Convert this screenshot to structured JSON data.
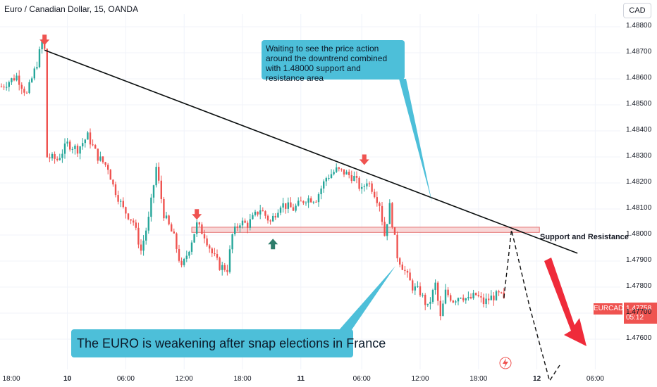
{
  "header": {
    "title": "Euro / Canadian Dollar, 15, OANDA"
  },
  "currency_button": {
    "label": "CAD"
  },
  "annotations": {
    "top": "Waiting to see the price action around the downtrend combined with 1.48000 support and resistance area",
    "bottom": "The EURO is weakening after snap elections in France",
    "support_resistance": "Support and Resistance"
  },
  "price_tag": {
    "symbol": "EURCAD",
    "price": "1.47758",
    "countdown": "05:12"
  },
  "colors": {
    "up": "#26a69a",
    "down": "#ef5350",
    "callout": "#4dbfd9",
    "trendline": "#0b0f0f",
    "zone_fill": "#f6c9c9",
    "zone_border": "#e57373",
    "projection_arrow": "#ef2b3a"
  },
  "chart_data": {
    "type": "candlestick",
    "symbol": "EURCAD",
    "interval": "15",
    "y_ticks": [
      "1.48800",
      "1.48700",
      "1.48600",
      "1.48500",
      "1.48400",
      "1.48300",
      "1.48200",
      "1.48100",
      "1.48000",
      "1.47900",
      "1.47800",
      "1.47700",
      "1.47600"
    ],
    "x_ticks": [
      {
        "label": "18:00",
        "day_boundary": false
      },
      {
        "label": "10",
        "day_boundary": true
      },
      {
        "label": "06:00",
        "day_boundary": false
      },
      {
        "label": "12:00",
        "day_boundary": false
      },
      {
        "label": "18:00",
        "day_boundary": false
      },
      {
        "label": "11",
        "day_boundary": true
      },
      {
        "label": "06:00",
        "day_boundary": false
      },
      {
        "label": "12:00",
        "day_boundary": false
      },
      {
        "label": "18:00",
        "day_boundary": false
      },
      {
        "label": "12",
        "day_boundary": true
      },
      {
        "label": "06:00",
        "day_boundary": false
      }
    ],
    "ylim": [
      1.4755,
      1.4885
    ],
    "price_path": [
      [
        0,
        1.4857
      ],
      [
        6,
        1.4861
      ],
      [
        10,
        1.4854
      ],
      [
        14,
        1.4866
      ],
      [
        16,
        1.4874
      ],
      [
        17,
        1.4871
      ],
      [
        18,
        1.483
      ],
      [
        22,
        1.4829
      ],
      [
        26,
        1.4835
      ],
      [
        30,
        1.4833
      ],
      [
        34,
        1.4838
      ],
      [
        38,
        1.483
      ],
      [
        42,
        1.4826
      ],
      [
        44,
        1.4819
      ],
      [
        48,
        1.481
      ],
      [
        52,
        1.4805
      ],
      [
        55,
        1.4794
      ],
      [
        58,
        1.4806
      ],
      [
        61,
        1.4826
      ],
      [
        64,
        1.4808
      ],
      [
        68,
        1.4799
      ],
      [
        71,
        1.4787
      ],
      [
        74,
        1.4795
      ],
      [
        77,
        1.4804
      ],
      [
        80,
        1.48
      ],
      [
        83,
        1.4793
      ],
      [
        86,
        1.4788
      ],
      [
        89,
        1.4787
      ],
      [
        91,
        1.48
      ],
      [
        94,
        1.4805
      ],
      [
        97,
        1.4804
      ],
      [
        102,
        1.481
      ],
      [
        106,
        1.4805
      ],
      [
        110,
        1.4812
      ],
      [
        115,
        1.481
      ],
      [
        120,
        1.4814
      ],
      [
        124,
        1.4814
      ],
      [
        128,
        1.4822
      ],
      [
        132,
        1.4825
      ],
      [
        135,
        1.4824
      ],
      [
        139,
        1.4822
      ],
      [
        142,
        1.4817
      ],
      [
        144,
        1.4821
      ],
      [
        146,
        1.4818
      ],
      [
        149,
        1.4812
      ],
      [
        151,
        1.48
      ],
      [
        153,
        1.4811
      ],
      [
        156,
        1.4792
      ],
      [
        159,
        1.4786
      ],
      [
        162,
        1.478
      ],
      [
        165,
        1.4778
      ],
      [
        168,
        1.4772
      ],
      [
        171,
        1.4781
      ],
      [
        173,
        1.4768
      ],
      [
        175,
        1.4778
      ],
      [
        178,
        1.4775
      ],
      [
        181,
        1.4777
      ],
      [
        184,
        1.4775
      ],
      [
        187,
        1.4777
      ],
      [
        190,
        1.4774
      ],
      [
        193,
        1.4776
      ],
      [
        196,
        1.4777
      ],
      [
        198,
        1.47758
      ]
    ],
    "trendline": {
      "from": [
        17,
        1.4871
      ],
      "to": [
        227,
        1.4793
      ]
    },
    "support_resistance_zone": {
      "low": 1.4801,
      "high": 1.4803,
      "from_bar": 75,
      "to_bar": 212
    },
    "projection": [
      [
        198,
        1.47758
      ],
      [
        201,
        1.4802
      ],
      [
        208,
        1.4773
      ],
      [
        216,
        1.4744
      ],
      [
        220,
        1.475
      ]
    ],
    "markers": [
      {
        "type": "arrow_down",
        "bar": 17,
        "price": 1.4871
      },
      {
        "type": "arrow_down",
        "bar": 77,
        "price": 1.4804
      },
      {
        "type": "arrow_up",
        "bar": 107,
        "price": 1.4801
      },
      {
        "type": "arrow_down",
        "bar": 143,
        "price": 1.4825
      }
    ]
  }
}
